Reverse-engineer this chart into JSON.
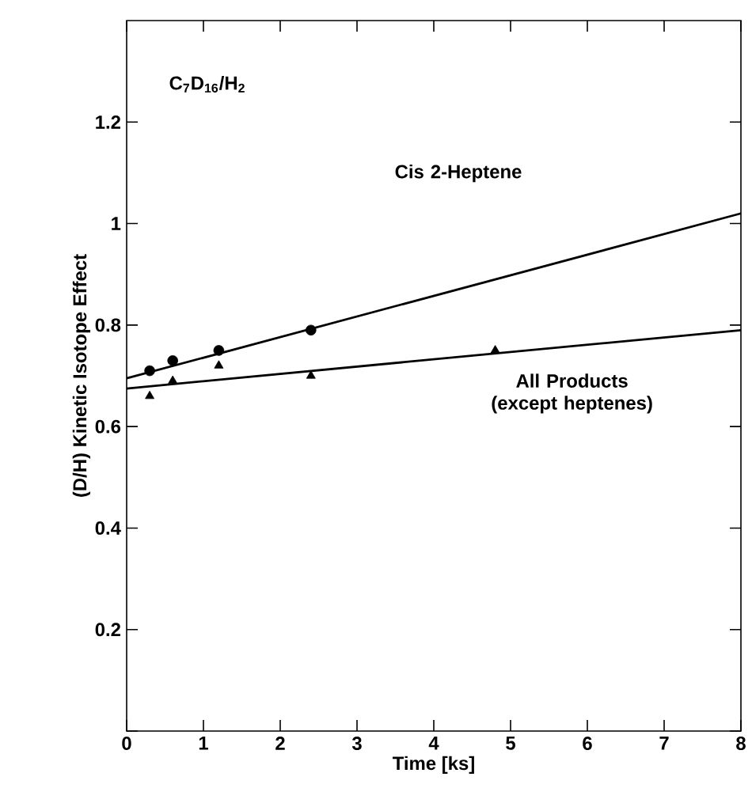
{
  "chart_data": {
    "type": "scatter",
    "xlabel": "Time [ks]",
    "ylabel": "(D/H) Kinetic Isotope Effect",
    "xlim": [
      0,
      8
    ],
    "ylim": [
      0,
      1.4
    ],
    "xticks": [
      0,
      1,
      2,
      3,
      4,
      5,
      6,
      7,
      8
    ],
    "yticks": [
      {
        "value": 0,
        "label": null
      },
      0.2,
      0.4,
      0.6,
      0.8,
      1,
      1.2
    ],
    "grid": false,
    "series": [
      {
        "marker": "circle",
        "color": "#000000",
        "x": [
          0.3,
          0.6,
          1.2,
          2.4
        ],
        "values": [
          0.71,
          0.73,
          0.75,
          0.79
        ]
      },
      {
        "marker": "triangle",
        "color": "#000000",
        "x": [
          0.3,
          0.6,
          1.2,
          2.4,
          4.8
        ],
        "values": [
          0.66,
          0.69,
          0.72,
          0.7,
          0.75
        ]
      },
      {
        "type": "line",
        "marker": "none",
        "line_style": "solid",
        "color": "#000000",
        "x": [
          0,
          8
        ],
        "values": [
          0.695,
          1.02
        ]
      },
      {
        "type": "line",
        "marker": "none",
        "line_style": "solid",
        "color": "#000000",
        "x": [
          0,
          8
        ],
        "values": [
          0.675,
          0.79
        ]
      }
    ],
    "annotations": [
      "C$_{7}$D$_{16}$/H$_{2}$",
      "Cis 2-Heptene",
      "All Products (except heptenes)"
    ]
  }
}
